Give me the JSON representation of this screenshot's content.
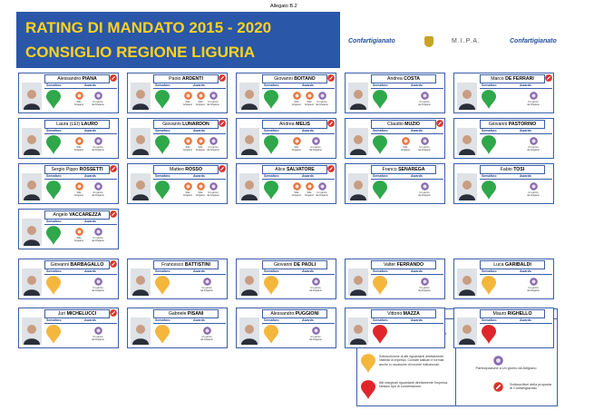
{
  "header": {
    "annex": "Allegato B.2",
    "title": "RATING DI MANDATO 2015 - 2020",
    "subtitle": "CONSIGLIO REGIONE LIGURIA",
    "logos": [
      "Confartigianato",
      "M.I.P.A.",
      "Confartigianato"
    ]
  },
  "labels": {
    "semaforo": "Semaforo",
    "awards": "Awards"
  },
  "groups": [
    {
      "cards": [
        {
          "first": "Alessandro",
          "last": "PIANA",
          "light": "green",
          "badge": true,
          "awards": [
            "Stile Artigiano",
            "Un giorno da Artigiano"
          ]
        },
        {
          "first": "Paolo",
          "last": "ARDENTI",
          "light": "green",
          "badge": true,
          "awards": [
            "Stile Artigiano",
            "Stile Artigiano",
            "Un giorno da Artigiano"
          ]
        },
        {
          "first": "Giovanni",
          "last": "BOITANO",
          "light": "green",
          "badge": true,
          "awards": [
            "Stile Artigiano",
            "Stile Artigiano",
            "Un giorno da Artigiano"
          ]
        },
        {
          "first": "Andrea",
          "last": "COSTA",
          "light": "green",
          "badge": false,
          "awards": [
            "Un giorno da Artigiano"
          ]
        },
        {
          "first": "Marco",
          "last": "DE FERRARI",
          "light": "green",
          "badge": true,
          "awards": [
            "Un giorno da Artigiano"
          ]
        },
        {
          "first": "Laura (LEI)",
          "last": "LAURO",
          "light": "green",
          "badge": false,
          "awards": [
            "Stile Artigiano",
            "Un giorno da Artigiano"
          ]
        },
        {
          "first": "Giovanni",
          "last": "LUNARDON",
          "light": "green",
          "badge": true,
          "awards": [
            "Stile Artigiano",
            "Stile Artigiano",
            "Un giorno da Artigiano"
          ]
        },
        {
          "first": "Andrea",
          "last": "MELIS",
          "light": "green",
          "badge": true,
          "awards": [
            "Stile Artigiano",
            "Un giorno da Artigiano"
          ]
        },
        {
          "first": "Claudio",
          "last": "MUZIO",
          "light": "green",
          "badge": true,
          "awards": [
            "Stile Artigiano",
            "Un giorno da Artigiano"
          ]
        },
        {
          "first": "Giovanni",
          "last": "PASTORINO",
          "light": "green",
          "badge": false,
          "awards": [
            "Un giorno da Artigiano"
          ]
        },
        {
          "first": "Sergio Pippo",
          "last": "ROSSETTI",
          "light": "green",
          "badge": true,
          "awards": [
            "Stile Artigiano",
            "Un giorno da Artigiano"
          ]
        },
        {
          "first": "Matteo",
          "last": "ROSSO",
          "light": "green",
          "badge": true,
          "awards": [
            "Stile Artigiano",
            "Stile Artigiano",
            "Un giorno da Artigiano"
          ]
        },
        {
          "first": "Alice",
          "last": "SALVATORE",
          "light": "green",
          "badge": true,
          "awards": [
            "Stile Artigiano",
            "Stile Artigiano",
            "Un giorno da Artigiano"
          ]
        },
        {
          "first": "Franco",
          "last": "SENAREGA",
          "light": "green",
          "badge": false,
          "awards": [
            "Un giorno da Artigiano"
          ]
        },
        {
          "first": "Fabio",
          "last": "TOSI",
          "light": "green",
          "badge": false,
          "awards": [
            "Un giorno da Artigiano"
          ]
        },
        {
          "first": "Angelo",
          "last": "VACCAREZZA",
          "light": "green",
          "badge": true,
          "awards": [
            "Stile Artigiano",
            "Un giorno da Artigiano"
          ]
        }
      ]
    },
    {
      "cards": [
        {
          "first": "Giovanni",
          "last": "BARBAGALLO",
          "light": "yellow",
          "badge": true,
          "awards": [
            "Un giorno da Artigiano"
          ]
        },
        {
          "first": "Francesco",
          "last": "BATTISTINI",
          "light": "yellow",
          "badge": false,
          "awards": [
            "Un giorno da Artigiano"
          ]
        },
        {
          "first": "Giovanni",
          "last": "DE PAOLI",
          "light": "yellow",
          "badge": false,
          "awards": [
            "Un giorno da Artigiano"
          ]
        },
        {
          "first": "Valter",
          "last": "FERRANDO",
          "light": "yellow",
          "badge": false,
          "awards": [
            "Un giorno da Artigiano"
          ]
        },
        {
          "first": "Luca",
          "last": "GARIBALDI",
          "light": "yellow",
          "badge": false,
          "awards": [
            "Un giorno da Artigiano"
          ]
        },
        {
          "first": "Juri",
          "last": "MICHELUCCI",
          "light": "yellow",
          "badge": true,
          "awards": [
            "Un giorno da Artigiano"
          ]
        },
        {
          "first": "Gabriele",
          "last": "PISANI",
          "light": "yellow",
          "badge": false,
          "awards": [
            "Un giorno da Artigiano"
          ]
        },
        {
          "first": "Alessandro",
          "last": "PUGGIONI",
          "light": "yellow",
          "badge": false,
          "awards": [
            "Un giorno da Artigiano"
          ]
        },
        {
          "first": "Vittorio",
          "last": "MAZZA",
          "light": "red",
          "badge": false,
          "awards": []
        },
        {
          "first": "Mauro",
          "last": "RIGHELLO",
          "light": "red",
          "badge": false,
          "awards": []
        }
      ]
    }
  ],
  "legend": {
    "title": "LEGENDA",
    "col_judgement": "Giudizio sintetico",
    "col_awards": "Awards",
    "rows": [
      {
        "light": "green",
        "text": "Costruzione e condivisione di alcuni progetti e attività legislative. Partecipazione ad attività ed eventi dell'associazione.",
        "award": "orange",
        "award_text": "Partecipazione a Stile Artigiano"
      },
      {
        "light": "yellow",
        "text": "Sottoscrizione di atti riguardanti direttamente l'attività di impresa. Contatti saltuari e formali anche in occasione di incontri istituzionali.",
        "award": "purple",
        "award_text": "Partecipazione a Un giorno da Artigiano"
      },
      {
        "light": "red",
        "text": "Atti marginali riguardanti direttamente l'impresa. Nessun tipo di concertazione.",
        "award": "badge",
        "award_text": "Sottoscrittori della proposta di Confartigianato"
      }
    ]
  }
}
